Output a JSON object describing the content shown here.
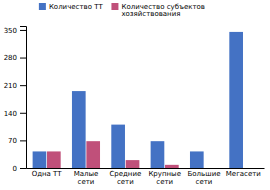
{
  "chart_data": {
    "type": "bar",
    "categories": [
      "Одна ТТ",
      "Малые\nсети",
      "Средние\nсети",
      "Крупные\nсети",
      "Большие\nсети",
      "Мегасети"
    ],
    "series": [
      {
        "name": "Количество ТТ",
        "color": "#4472C4",
        "values": [
          42,
          195,
          110,
          68,
          42,
          345
        ]
      },
      {
        "name": "Количество субъектов\nхозяйствования",
        "color": "#C0507A",
        "values": [
          42,
          68,
          20,
          8,
          0,
          0
        ]
      }
    ],
    "ylim": [
      0,
      360
    ],
    "yticks": [
      0,
      70,
      140,
      210,
      280,
      350
    ],
    "grid": false,
    "legend": "upper right"
  }
}
